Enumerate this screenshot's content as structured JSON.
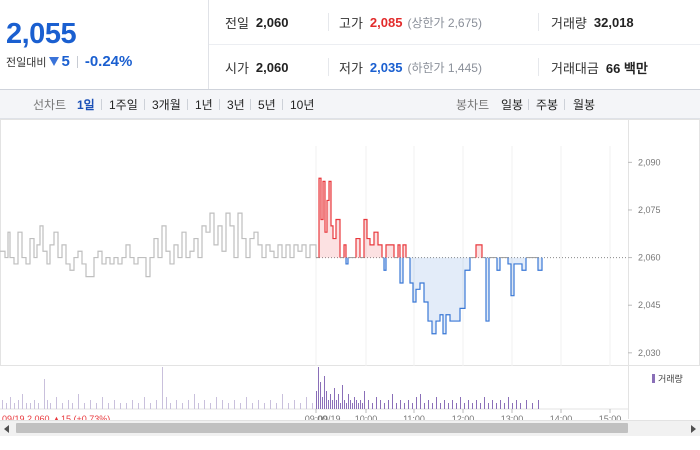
{
  "summary": {
    "price": "2,055",
    "change_label": "전일대비",
    "change_amount": "5",
    "change_percent": "-0.24%",
    "stats": {
      "prev_close_label": "전일",
      "prev_close": "2,060",
      "high_label": "고가",
      "high": "2,085",
      "upper_limit": "(상한가 2,675)",
      "volume_label": "거래량",
      "volume": "32,018",
      "open_label": "시가",
      "open": "2,060",
      "low_label": "저가",
      "low": "2,035",
      "lower_limit": "(하한가 1,445)",
      "turnover_label": "거래대금",
      "turnover": "66 백만"
    }
  },
  "tabs": {
    "line_label": "선차트",
    "line_items": [
      "1일",
      "1주일",
      "3개월",
      "1년",
      "3년",
      "5년",
      "10년"
    ],
    "candle_label": "봉차트",
    "candle_items": [
      "일봉",
      "주봉",
      "월봉"
    ]
  },
  "colors": {
    "up": "#e8383d",
    "down": "#3a78d6",
    "prev_day": "#bfbfbf",
    "price_blue": "#1a5fd0"
  },
  "chart_data": {
    "type": "line",
    "reference": 2060,
    "ylim": [
      2029,
      2092
    ],
    "y_ticks": [
      "2,090",
      "2,075",
      "2,060",
      "2,045",
      "2,030"
    ],
    "y_tick_values": [
      2090,
      2075,
      2060,
      2045,
      2030
    ],
    "x_range": [
      0,
      700
    ],
    "prev_day_series": [
      [
        0,
        2062
      ],
      [
        5,
        2060
      ],
      [
        8,
        2068
      ],
      [
        10,
        2060
      ],
      [
        14,
        2058
      ],
      [
        18,
        2068
      ],
      [
        22,
        2060
      ],
      [
        26,
        2058
      ],
      [
        30,
        2066
      ],
      [
        34,
        2060
      ],
      [
        37,
        2064
      ],
      [
        40,
        2070
      ],
      [
        43,
        2062
      ],
      [
        47,
        2058
      ],
      [
        50,
        2064
      ],
      [
        54,
        2068
      ],
      [
        58,
        2060
      ],
      [
        62,
        2064
      ],
      [
        66,
        2058
      ],
      [
        70,
        2056
      ],
      [
        74,
        2060
      ],
      [
        78,
        2062
      ],
      [
        82,
        2058
      ],
      [
        86,
        2054
      ],
      [
        90,
        2054
      ],
      [
        94,
        2060
      ],
      [
        98,
        2062
      ],
      [
        102,
        2058
      ],
      [
        106,
        2060
      ],
      [
        110,
        2058
      ],
      [
        114,
        2060
      ],
      [
        118,
        2058
      ],
      [
        122,
        2060
      ],
      [
        126,
        2064
      ],
      [
        130,
        2060
      ],
      [
        134,
        2058
      ],
      [
        138,
        2060
      ],
      [
        142,
        2060
      ],
      [
        146,
        2054
      ],
      [
        150,
        2060
      ],
      [
        154,
        2066
      ],
      [
        158,
        2060
      ],
      [
        162,
        2070
      ],
      [
        166,
        2062
      ],
      [
        170,
        2058
      ],
      [
        174,
        2064
      ],
      [
        178,
        2060
      ],
      [
        182,
        2068
      ],
      [
        186,
        2060
      ],
      [
        190,
        2062
      ],
      [
        194,
        2066
      ],
      [
        198,
        2060
      ],
      [
        202,
        2070
      ],
      [
        206,
        2068
      ],
      [
        210,
        2074
      ],
      [
        214,
        2064
      ],
      [
        218,
        2070
      ],
      [
        222,
        2062
      ],
      [
        226,
        2074
      ],
      [
        230,
        2070
      ],
      [
        234,
        2060
      ],
      [
        238,
        2074
      ],
      [
        242,
        2066
      ],
      [
        246,
        2060
      ],
      [
        250,
        2066
      ],
      [
        254,
        2068
      ],
      [
        258,
        2064
      ],
      [
        262,
        2060
      ],
      [
        266,
        2064
      ],
      [
        270,
        2062
      ],
      [
        274,
        2060
      ],
      [
        278,
        2064
      ],
      [
        282,
        2060
      ],
      [
        286,
        2064
      ],
      [
        290,
        2060
      ],
      [
        294,
        2064
      ],
      [
        298,
        2062
      ],
      [
        302,
        2064
      ],
      [
        306,
        2060
      ],
      [
        310,
        2064
      ],
      [
        316,
        2060
      ]
    ],
    "today_series": [
      [
        316,
        2060
      ],
      [
        319,
        2085
      ],
      [
        321,
        2072
      ],
      [
        323,
        2084
      ],
      [
        325,
        2068
      ],
      [
        327,
        2078
      ],
      [
        329,
        2084
      ],
      [
        331,
        2070
      ],
      [
        333,
        2066
      ],
      [
        336,
        2072
      ],
      [
        340,
        2060
      ],
      [
        344,
        2064
      ],
      [
        346,
        2058
      ],
      [
        348,
        2060
      ],
      [
        352,
        2060
      ],
      [
        356,
        2066
      ],
      [
        360,
        2060
      ],
      [
        364,
        2072
      ],
      [
        367,
        2066
      ],
      [
        370,
        2064
      ],
      [
        374,
        2068
      ],
      [
        378,
        2064
      ],
      [
        382,
        2060
      ],
      [
        384,
        2056
      ],
      [
        386,
        2064
      ],
      [
        390,
        2064
      ],
      [
        394,
        2060
      ],
      [
        398,
        2064
      ],
      [
        400,
        2052
      ],
      [
        403,
        2064
      ],
      [
        406,
        2060
      ],
      [
        410,
        2052
      ],
      [
        413,
        2046
      ],
      [
        416,
        2050
      ],
      [
        420,
        2052
      ],
      [
        424,
        2046
      ],
      [
        428,
        2040
      ],
      [
        432,
        2036
      ],
      [
        436,
        2040
      ],
      [
        440,
        2042
      ],
      [
        443,
        2036
      ],
      [
        446,
        2042
      ],
      [
        450,
        2040
      ],
      [
        455,
        2040
      ],
      [
        460,
        2044
      ],
      [
        465,
        2056
      ],
      [
        470,
        2060
      ],
      [
        476,
        2064
      ],
      [
        482,
        2060
      ],
      [
        486,
        2040
      ],
      [
        489,
        2060
      ],
      [
        493,
        2060
      ],
      [
        497,
        2056
      ],
      [
        500,
        2060
      ],
      [
        504,
        2060
      ],
      [
        508,
        2058
      ],
      [
        511,
        2048
      ],
      [
        514,
        2058
      ],
      [
        518,
        2058
      ],
      [
        522,
        2056
      ],
      [
        526,
        2060
      ],
      [
        530,
        2060
      ],
      [
        534,
        2060
      ],
      [
        538,
        2056
      ],
      [
        542,
        2056
      ]
    ],
    "x_tick_labels": [
      "09:00",
      "10:00",
      "11:00",
      "12:00",
      "13:00",
      "14:00",
      "15:00"
    ],
    "x_tick_positions": [
      316,
      366,
      414,
      463,
      512,
      561,
      610
    ],
    "volume_legend": "거래량",
    "volume_bars": [
      [
        2,
        3
      ],
      [
        6,
        2
      ],
      [
        10,
        4
      ],
      [
        14,
        2
      ],
      [
        18,
        3
      ],
      [
        22,
        5
      ],
      [
        26,
        2
      ],
      [
        30,
        2
      ],
      [
        34,
        3
      ],
      [
        38,
        2
      ],
      [
        44,
        10
      ],
      [
        47,
        3
      ],
      [
        50,
        2
      ],
      [
        56,
        4
      ],
      [
        62,
        2
      ],
      [
        68,
        3
      ],
      [
        72,
        2
      ],
      [
        78,
        5
      ],
      [
        84,
        2
      ],
      [
        90,
        3
      ],
      [
        96,
        2
      ],
      [
        102,
        4
      ],
      [
        108,
        2
      ],
      [
        114,
        3
      ],
      [
        120,
        2
      ],
      [
        126,
        2
      ],
      [
        132,
        3
      ],
      [
        138,
        2
      ],
      [
        144,
        4
      ],
      [
        150,
        2
      ],
      [
        156,
        3
      ],
      [
        162,
        14
      ],
      [
        166,
        4
      ],
      [
        170,
        2
      ],
      [
        176,
        3
      ],
      [
        182,
        2
      ],
      [
        188,
        3
      ],
      [
        194,
        5
      ],
      [
        198,
        2
      ],
      [
        204,
        3
      ],
      [
        210,
        2
      ],
      [
        216,
        4
      ],
      [
        222,
        3
      ],
      [
        228,
        2
      ],
      [
        234,
        3
      ],
      [
        240,
        2
      ],
      [
        246,
        4
      ],
      [
        252,
        2
      ],
      [
        258,
        3
      ],
      [
        264,
        2
      ],
      [
        270,
        3
      ],
      [
        276,
        2
      ],
      [
        282,
        5
      ],
      [
        288,
        2
      ],
      [
        294,
        3
      ],
      [
        300,
        2
      ],
      [
        306,
        4
      ],
      [
        312,
        2
      ],
      [
        316,
        6
      ],
      [
        318,
        14
      ],
      [
        320,
        9
      ],
      [
        322,
        4
      ],
      [
        324,
        11
      ],
      [
        326,
        6
      ],
      [
        328,
        3
      ],
      [
        330,
        5
      ],
      [
        332,
        3
      ],
      [
        334,
        7
      ],
      [
        336,
        3
      ],
      [
        338,
        5
      ],
      [
        340,
        2
      ],
      [
        342,
        8
      ],
      [
        344,
        3
      ],
      [
        346,
        2
      ],
      [
        348,
        5
      ],
      [
        350,
        3
      ],
      [
        352,
        2
      ],
      [
        354,
        4
      ],
      [
        356,
        3
      ],
      [
        358,
        2
      ],
      [
        360,
        3
      ],
      [
        362,
        2
      ],
      [
        364,
        6
      ],
      [
        368,
        3
      ],
      [
        372,
        2
      ],
      [
        376,
        4
      ],
      [
        380,
        3
      ],
      [
        384,
        2
      ],
      [
        388,
        3
      ],
      [
        392,
        5
      ],
      [
        396,
        2
      ],
      [
        400,
        3
      ],
      [
        404,
        2
      ],
      [
        408,
        3
      ],
      [
        412,
        2
      ],
      [
        416,
        4
      ],
      [
        420,
        5
      ],
      [
        424,
        2
      ],
      [
        428,
        3
      ],
      [
        432,
        2
      ],
      [
        436,
        4
      ],
      [
        440,
        2
      ],
      [
        444,
        3
      ],
      [
        448,
        2
      ],
      [
        452,
        3
      ],
      [
        456,
        2
      ],
      [
        460,
        4
      ],
      [
        464,
        2
      ],
      [
        468,
        3
      ],
      [
        472,
        2
      ],
      [
        476,
        3
      ],
      [
        480,
        2
      ],
      [
        484,
        4
      ],
      [
        488,
        2
      ],
      [
        492,
        3
      ],
      [
        496,
        2
      ],
      [
        500,
        3
      ],
      [
        504,
        2
      ],
      [
        508,
        4
      ],
      [
        512,
        2
      ],
      [
        516,
        3
      ],
      [
        520,
        2
      ],
      [
        526,
        3
      ],
      [
        532,
        2
      ],
      [
        538,
        3
      ]
    ],
    "bottom_series_label": "09/19 2,060 ▲15 (+0.73%)",
    "bottom_date_label": "09/19"
  }
}
